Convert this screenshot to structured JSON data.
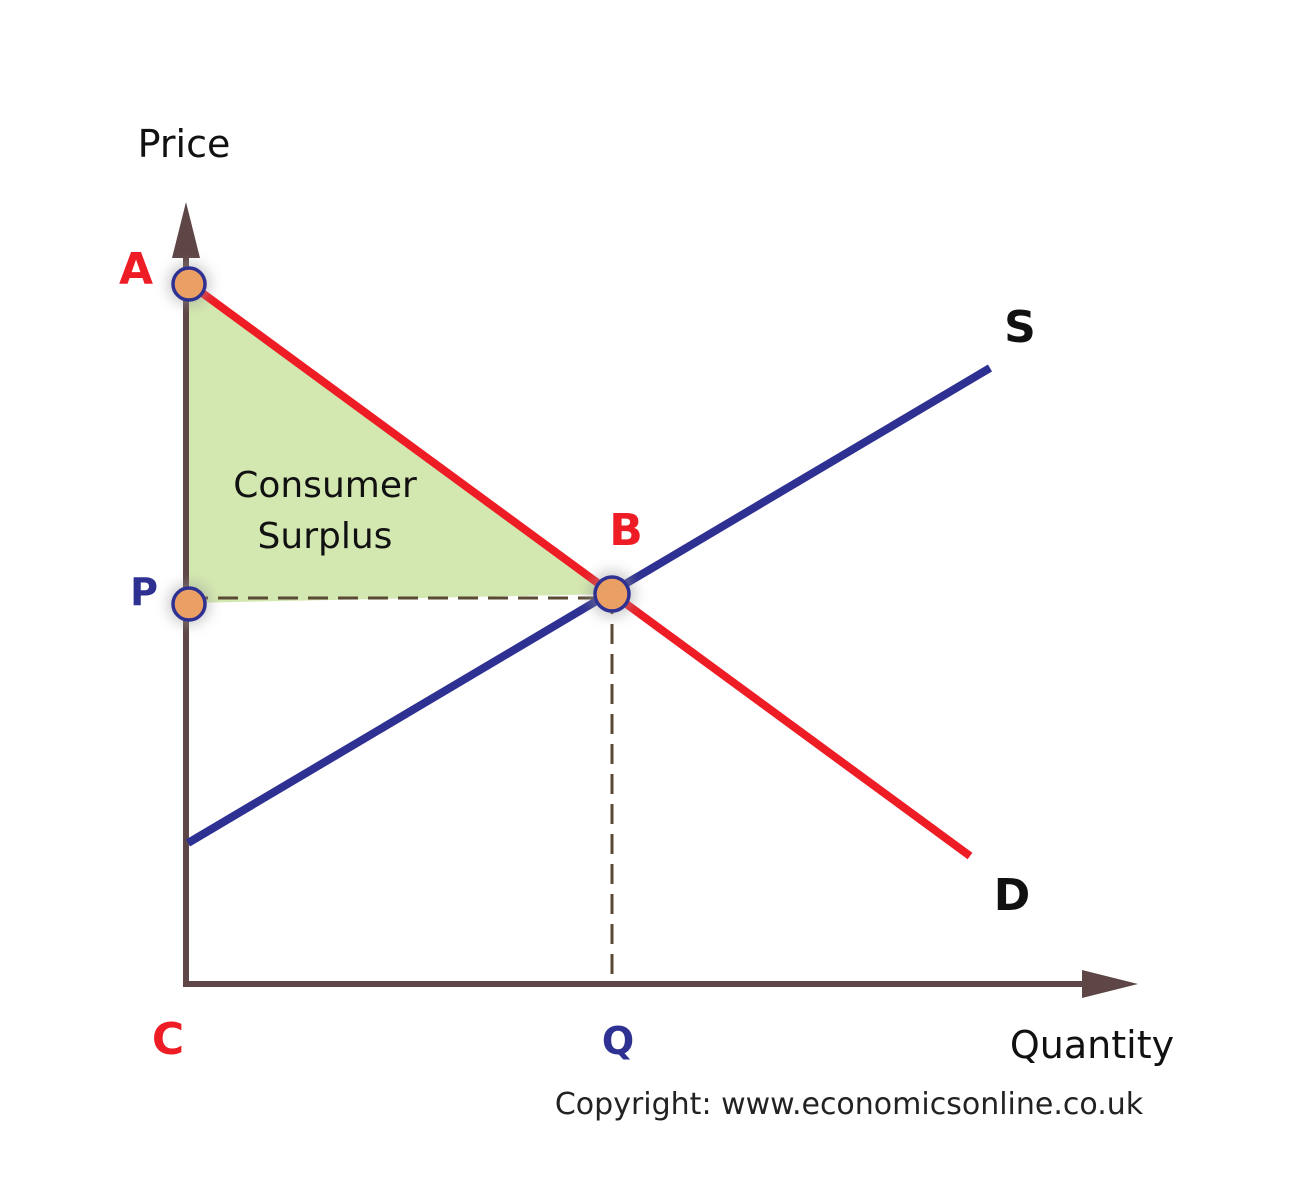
{
  "axes": {
    "y_label": "Price",
    "x_label": "Quantity"
  },
  "points": {
    "A": "A",
    "B": "B",
    "C": "C",
    "P": "P",
    "Q": "Q"
  },
  "curves": {
    "supply": "S",
    "demand": "D"
  },
  "area": {
    "line1": "Consumer",
    "line2": "Surplus"
  },
  "copyright": "Copyright: www.economicsonline.co.uk",
  "colors": {
    "axis": "#5e4546",
    "demand": "#ee1c25",
    "supply": "#2e3192",
    "surplus_fill": "#d3e7b0",
    "marker_fill": "#eaa063",
    "marker_stroke": "#2e3192",
    "red_label": "#ee1c25",
    "blue_label": "#2e3192",
    "guide": "#5a4a33"
  }
}
